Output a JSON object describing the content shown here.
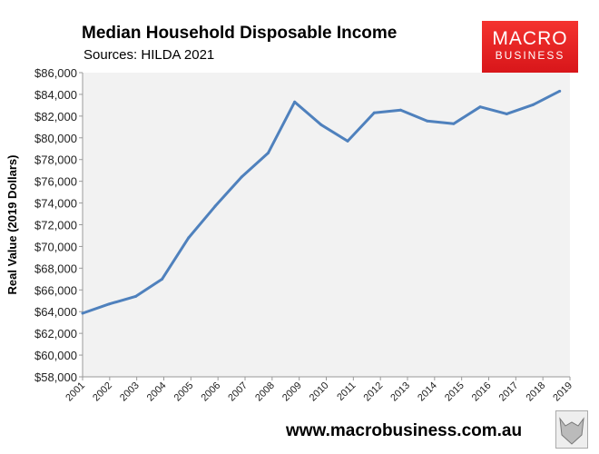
{
  "header": {
    "title": "Median Household Disposable Income",
    "subtitle": "Sources: HILDA 2021"
  },
  "logo": {
    "line1": "MACRO",
    "line2": "BUSINESS",
    "color": "#e8201f"
  },
  "footer": {
    "url": "www.macrobusiness.com.au"
  },
  "chart_data": {
    "type": "line",
    "title": "Median Household Disposable Income",
    "subtitle": "Sources: HILDA 2021",
    "xlabel": "",
    "ylabel": "Real Value (2019 Dollars)",
    "ylim": [
      58000,
      86000
    ],
    "ytick_step": 2000,
    "grid": false,
    "plot_background": "#f2f2f2",
    "line_color": "#4f81bd",
    "categories": [
      "2001",
      "2002",
      "2003",
      "2004",
      "2005",
      "2006",
      "2007",
      "2008",
      "2009",
      "2010",
      "2011",
      "2012",
      "2013",
      "2014",
      "2015",
      "2016",
      "2017",
      "2018",
      "2019"
    ],
    "values": [
      63850,
      64700,
      65400,
      67000,
      70800,
      73700,
      76400,
      78600,
      83300,
      81200,
      79700,
      82300,
      82550,
      81550,
      81300,
      82850,
      82200,
      83050,
      84300
    ]
  }
}
